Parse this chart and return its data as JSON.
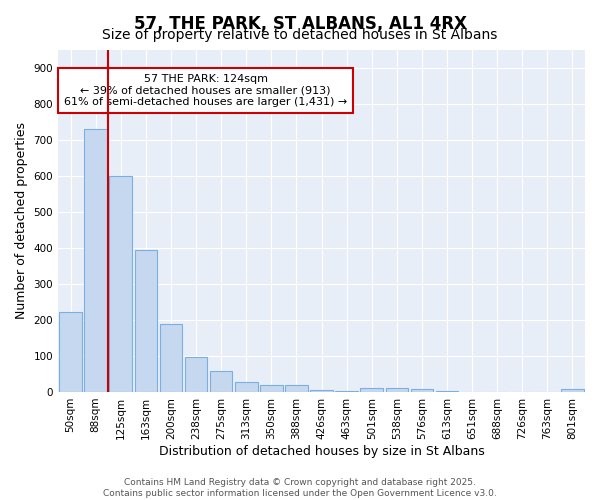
{
  "title": "57, THE PARK, ST ALBANS, AL1 4RX",
  "subtitle": "Size of property relative to detached houses in St Albans",
  "xlabel": "Distribution of detached houses by size in St Albans",
  "ylabel": "Number of detached properties",
  "categories": [
    "50sqm",
    "88sqm",
    "125sqm",
    "163sqm",
    "200sqm",
    "238sqm",
    "275sqm",
    "313sqm",
    "350sqm",
    "388sqm",
    "426sqm",
    "463sqm",
    "501sqm",
    "538sqm",
    "576sqm",
    "613sqm",
    "651sqm",
    "688sqm",
    "726sqm",
    "763sqm",
    "801sqm"
  ],
  "values": [
    222,
    730,
    600,
    393,
    190,
    97,
    58,
    28,
    20,
    18,
    5,
    2,
    10,
    11,
    7,
    2,
    0,
    0,
    0,
    0,
    7
  ],
  "bar_color": "#c5d8f0",
  "bar_edgecolor": "#7aafe0",
  "vline_color": "#cc0000",
  "vline_pos": 2,
  "annotation_text": "57 THE PARK: 124sqm\n← 39% of detached houses are smaller (913)\n61% of semi-detached houses are larger (1,431) →",
  "annotation_box_color": "#cc0000",
  "annotation_facecolor": "white",
  "ylim": [
    0,
    950
  ],
  "yticks": [
    0,
    100,
    200,
    300,
    400,
    500,
    600,
    700,
    800,
    900
  ],
  "background_color": "#e8eef8",
  "grid_color": "white",
  "footer": "Contains HM Land Registry data © Crown copyright and database right 2025.\nContains public sector information licensed under the Open Government Licence v3.0.",
  "title_fontsize": 12,
  "subtitle_fontsize": 10,
  "xlabel_fontsize": 9,
  "ylabel_fontsize": 9,
  "tick_fontsize": 7.5,
  "footer_fontsize": 6.5
}
